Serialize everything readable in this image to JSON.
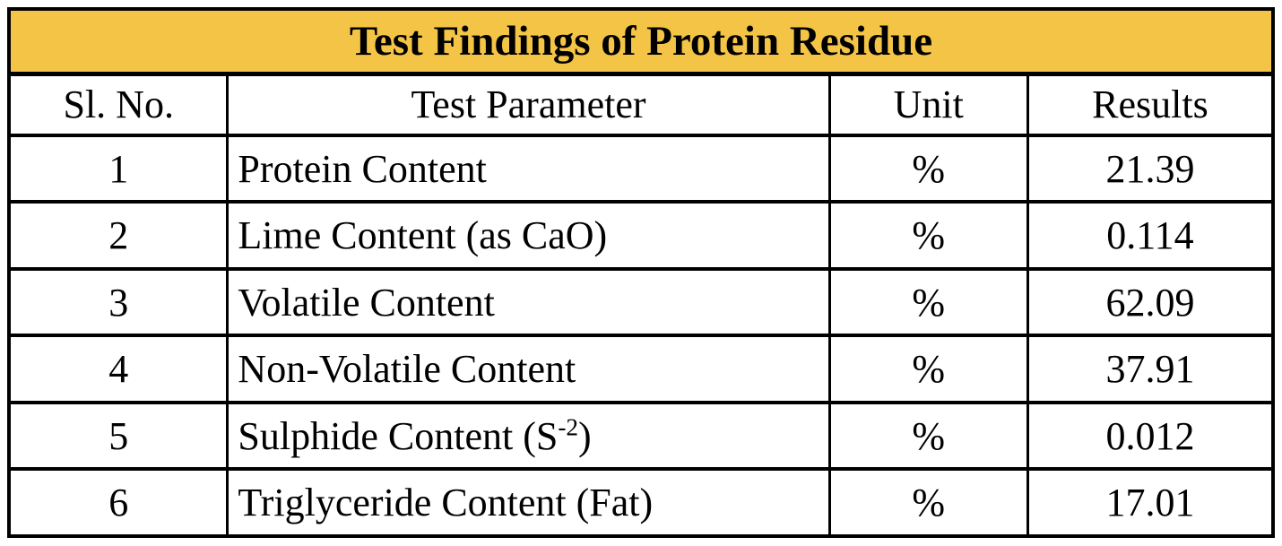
{
  "title": "Test Findings of Protein Residue",
  "colors": {
    "title_bg": "#F3C445",
    "border": "#000000",
    "text": "#000000"
  },
  "table": {
    "headers": [
      "Sl. No.",
      "Test Parameter",
      "Unit",
      "Results"
    ],
    "rows": [
      {
        "sl": "1",
        "param": {
          "pre": "Protein Content",
          "sup": "",
          "post": ""
        },
        "unit": "%",
        "result": "21.39"
      },
      {
        "sl": "2",
        "param": {
          "pre": "Lime Content (as CaO)",
          "sup": "",
          "post": ""
        },
        "unit": "%",
        "result": "0.114"
      },
      {
        "sl": "3",
        "param": {
          "pre": "Volatile Content",
          "sup": "",
          "post": ""
        },
        "unit": "%",
        "result": "62.09"
      },
      {
        "sl": "4",
        "param": {
          "pre": "Non-Volatile Content",
          "sup": "",
          "post": ""
        },
        "unit": "%",
        "result": "37.91"
      },
      {
        "sl": "5",
        "param": {
          "pre": "Sulphide Content (S",
          "sup": "-2",
          "post": ")"
        },
        "unit": "%",
        "result": "0.012"
      },
      {
        "sl": "6",
        "param": {
          "pre": "Triglyceride Content (Fat)",
          "sup": "",
          "post": ""
        },
        "unit": "%",
        "result": "17.01"
      }
    ]
  }
}
